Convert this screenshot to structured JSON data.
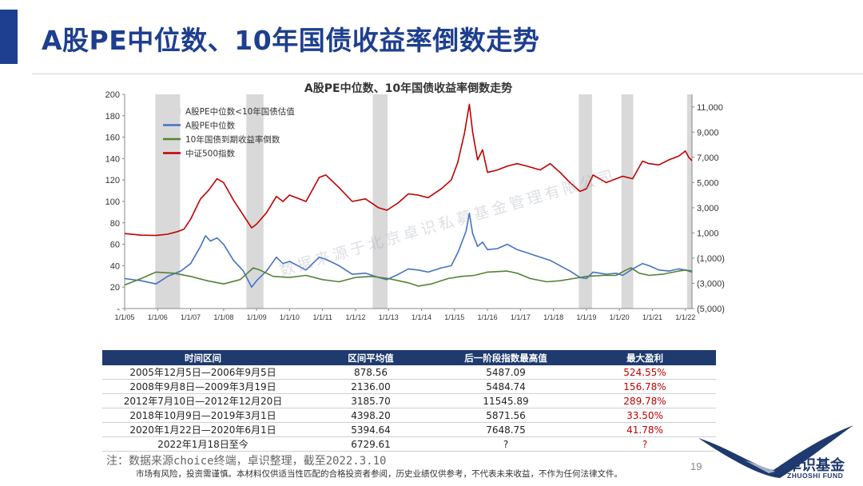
{
  "page": {
    "title": "A股PE中位数、10年国债收益率倒数走势",
    "page_number": "19",
    "note": "注：数据来源choice终端，卓识整理，截至2022.3.10",
    "disclaimer": "市场有风险，投资需谨慎。本材料仅供适当性匹配的合格投资者参阅，历史业绩仅供参考，不代表未来收益，不作为任何法律文件。",
    "watermark": "数据来源于北京卓识私募基金管理有限公司",
    "logo": {
      "name": "卓识基金",
      "sub": "ZHUOSHI FUND"
    },
    "colors": {
      "brand": "#1e3f8f",
      "table_header": "#1e3a6e",
      "red": "#c00000"
    }
  },
  "chart_data": {
    "type": "line",
    "title": "A股PE中位数、10年国债收益率倒数走势",
    "x_ticks": [
      "1/1/05",
      "1/1/06",
      "1/1/07",
      "1/1/08",
      "1/1/09",
      "1/1/10",
      "1/1/11",
      "1/1/12",
      "1/1/13",
      "1/1/14",
      "1/1/15",
      "1/1/16",
      "1/1/17",
      "1/1/18",
      "1/1/19",
      "1/1/20",
      "1/1/21",
      "1/1/22"
    ],
    "xlim": [
      2005.0,
      2022.2
    ],
    "ylim_left": [
      0,
      200
    ],
    "y_ticks_left": [
      "-",
      "20",
      "40",
      "60",
      "80",
      "100",
      "120",
      "140",
      "160",
      "180",
      "200"
    ],
    "ylim_right": [
      -5000,
      12000
    ],
    "y_ticks_right": [
      "(5,000)",
      "(3,000)",
      "(1,000)",
      "1,000",
      "3,000",
      "5,000",
      "7,000",
      "9,000",
      "11,000"
    ],
    "legend": [
      "A股PE中位数<10年国债估值",
      "A股PE中位数",
      "10年国债到期收益率倒数",
      "中证500指数"
    ],
    "shaded_periods": [
      [
        2005.93,
        2006.68
      ],
      [
        2008.69,
        2009.21
      ],
      [
        2012.52,
        2012.97
      ],
      [
        2018.77,
        2019.17
      ],
      [
        2020.06,
        2020.42
      ],
      [
        2022.05,
        2022.2
      ]
    ],
    "series": [
      {
        "name": "A股PE中位数",
        "axis": "left",
        "color": "#4472c4",
        "points": [
          [
            2005.0,
            28
          ],
          [
            2005.5,
            26
          ],
          [
            2005.95,
            23
          ],
          [
            2006.3,
            30
          ],
          [
            2006.7,
            35
          ],
          [
            2007.0,
            42
          ],
          [
            2007.3,
            58
          ],
          [
            2007.45,
            68
          ],
          [
            2007.6,
            63
          ],
          [
            2007.8,
            66
          ],
          [
            2008.0,
            60
          ],
          [
            2008.3,
            45
          ],
          [
            2008.6,
            35
          ],
          [
            2008.85,
            20
          ],
          [
            2009.0,
            26
          ],
          [
            2009.3,
            35
          ],
          [
            2009.6,
            48
          ],
          [
            2009.8,
            42
          ],
          [
            2010.0,
            44
          ],
          [
            2010.5,
            36
          ],
          [
            2010.9,
            48
          ],
          [
            2011.1,
            46
          ],
          [
            2011.5,
            40
          ],
          [
            2011.9,
            32
          ],
          [
            2012.3,
            33
          ],
          [
            2012.7,
            29
          ],
          [
            2012.95,
            27
          ],
          [
            2013.3,
            32
          ],
          [
            2013.6,
            37
          ],
          [
            2013.9,
            36
          ],
          [
            2014.2,
            34
          ],
          [
            2014.6,
            38
          ],
          [
            2014.9,
            40
          ],
          [
            2015.1,
            52
          ],
          [
            2015.35,
            72
          ],
          [
            2015.45,
            89
          ],
          [
            2015.55,
            70
          ],
          [
            2015.7,
            58
          ],
          [
            2015.85,
            62
          ],
          [
            2016.0,
            55
          ],
          [
            2016.3,
            56
          ],
          [
            2016.6,
            60
          ],
          [
            2016.9,
            55
          ],
          [
            2017.2,
            52
          ],
          [
            2017.6,
            48
          ],
          [
            2017.9,
            45
          ],
          [
            2018.2,
            40
          ],
          [
            2018.5,
            35
          ],
          [
            2018.8,
            29
          ],
          [
            2019.0,
            28
          ],
          [
            2019.2,
            34
          ],
          [
            2019.6,
            32
          ],
          [
            2019.9,
            33
          ],
          [
            2020.1,
            31
          ],
          [
            2020.4,
            37
          ],
          [
            2020.7,
            42
          ],
          [
            2020.9,
            40
          ],
          [
            2021.2,
            36
          ],
          [
            2021.5,
            35
          ],
          [
            2021.8,
            37
          ],
          [
            2022.0,
            36
          ],
          [
            2022.2,
            34
          ]
        ]
      },
      {
        "name": "10年国债到期收益率倒数",
        "axis": "left",
        "color": "#548235",
        "points": [
          [
            2005.0,
            22
          ],
          [
            2005.5,
            28
          ],
          [
            2005.95,
            34
          ],
          [
            2006.5,
            33
          ],
          [
            2007.0,
            30
          ],
          [
            2007.5,
            26
          ],
          [
            2008.0,
            23
          ],
          [
            2008.5,
            27
          ],
          [
            2008.9,
            38
          ],
          [
            2009.1,
            36
          ],
          [
            2009.5,
            30
          ],
          [
            2010.0,
            29
          ],
          [
            2010.5,
            31
          ],
          [
            2011.0,
            27
          ],
          [
            2011.5,
            25
          ],
          [
            2012.0,
            29
          ],
          [
            2012.5,
            30
          ],
          [
            2013.0,
            28
          ],
          [
            2013.6,
            24
          ],
          [
            2013.9,
            21
          ],
          [
            2014.3,
            23
          ],
          [
            2014.8,
            28
          ],
          [
            2015.2,
            30
          ],
          [
            2015.6,
            31
          ],
          [
            2016.0,
            34
          ],
          [
            2016.6,
            35
          ],
          [
            2016.9,
            33
          ],
          [
            2017.3,
            28
          ],
          [
            2017.8,
            25
          ],
          [
            2018.2,
            26
          ],
          [
            2018.6,
            28
          ],
          [
            2019.0,
            30
          ],
          [
            2019.5,
            31
          ],
          [
            2019.9,
            31
          ],
          [
            2020.2,
            36
          ],
          [
            2020.35,
            38
          ],
          [
            2020.6,
            33
          ],
          [
            2020.9,
            31
          ],
          [
            2021.3,
            32
          ],
          [
            2021.8,
            35
          ],
          [
            2022.0,
            36
          ],
          [
            2022.2,
            35
          ]
        ]
      },
      {
        "name": "中证500指数",
        "axis": "right",
        "color": "#c00000",
        "points": [
          [
            2005.0,
            950
          ],
          [
            2005.5,
            820
          ],
          [
            2005.95,
            800
          ],
          [
            2006.3,
            900
          ],
          [
            2006.6,
            1100
          ],
          [
            2006.8,
            1300
          ],
          [
            2007.0,
            2100
          ],
          [
            2007.3,
            3700
          ],
          [
            2007.55,
            4400
          ],
          [
            2007.8,
            5300
          ],
          [
            2008.0,
            5000
          ],
          [
            2008.3,
            3600
          ],
          [
            2008.6,
            2400
          ],
          [
            2008.85,
            1400
          ],
          [
            2009.0,
            1700
          ],
          [
            2009.3,
            2600
          ],
          [
            2009.6,
            3900
          ],
          [
            2009.8,
            3500
          ],
          [
            2010.0,
            4000
          ],
          [
            2010.5,
            3500
          ],
          [
            2010.9,
            5400
          ],
          [
            2011.1,
            5600
          ],
          [
            2011.5,
            4600
          ],
          [
            2011.9,
            3500
          ],
          [
            2012.3,
            3700
          ],
          [
            2012.7,
            3000
          ],
          [
            2012.95,
            2800
          ],
          [
            2013.3,
            3400
          ],
          [
            2013.6,
            4100
          ],
          [
            2013.9,
            4000
          ],
          [
            2014.2,
            3800
          ],
          [
            2014.6,
            4500
          ],
          [
            2014.9,
            5200
          ],
          [
            2015.1,
            6600
          ],
          [
            2015.3,
            8900
          ],
          [
            2015.45,
            11200
          ],
          [
            2015.55,
            9000
          ],
          [
            2015.7,
            6800
          ],
          [
            2015.85,
            7600
          ],
          [
            2016.0,
            5800
          ],
          [
            2016.3,
            6000
          ],
          [
            2016.6,
            6300
          ],
          [
            2016.9,
            6500
          ],
          [
            2017.2,
            6300
          ],
          [
            2017.6,
            6000
          ],
          [
            2017.9,
            6500
          ],
          [
            2018.2,
            5800
          ],
          [
            2018.5,
            5000
          ],
          [
            2018.8,
            4300
          ],
          [
            2019.0,
            4500
          ],
          [
            2019.2,
            5600
          ],
          [
            2019.6,
            5000
          ],
          [
            2019.9,
            5300
          ],
          [
            2020.1,
            5500
          ],
          [
            2020.4,
            5300
          ],
          [
            2020.7,
            6700
          ],
          [
            2020.9,
            6500
          ],
          [
            2021.2,
            6400
          ],
          [
            2021.5,
            6800
          ],
          [
            2021.8,
            7100
          ],
          [
            2022.0,
            7500
          ],
          [
            2022.1,
            7000
          ],
          [
            2022.2,
            6730
          ]
        ]
      }
    ]
  },
  "table": {
    "headers": [
      "时间区间",
      "区间平均值",
      "后一阶段指数最高值",
      "最大盈利"
    ],
    "rows": [
      [
        "2005年12月5日—2006年9月5日",
        "878.56",
        "5487.09",
        "524.55%"
      ],
      [
        "2008年9月8日—2009年3月19日",
        "2136.00",
        "5484.74",
        "156.78%"
      ],
      [
        "2012年7月10日—2012年12月20日",
        "3185.70",
        "11545.89",
        "289.78%"
      ],
      [
        "2018年10月9日—2019年3月1日",
        "4398.20",
        "5871.56",
        "33.50%"
      ],
      [
        "2020年1月22日—2020年6月1日",
        "5394.64",
        "7648.75",
        "41.78%"
      ],
      [
        "2022年1月18日至今",
        "6729.61",
        "?",
        "?"
      ]
    ]
  }
}
